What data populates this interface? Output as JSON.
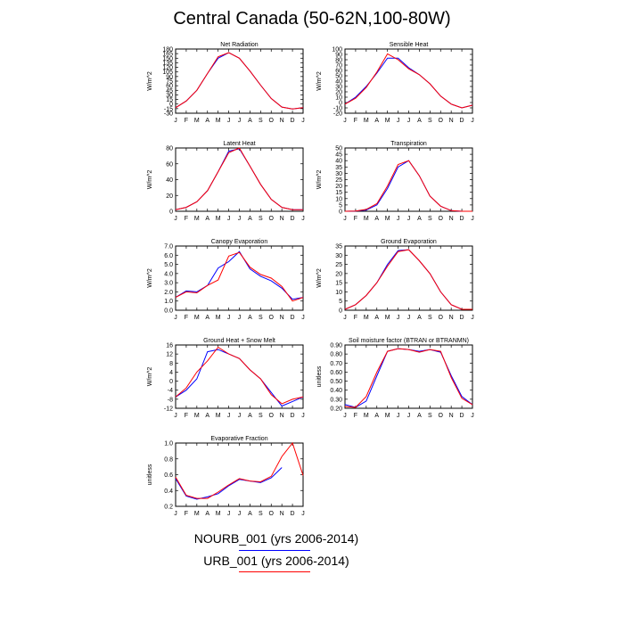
{
  "title": "Central Canada (50-62N,100-80W)",
  "legend": [
    {
      "label": "NOURB_001 (yrs 2006-2014)",
      "color": "#0000ff"
    },
    {
      "label": "URB_001 (yrs 2006-2014)",
      "color": "#ff0000"
    }
  ],
  "chart_data": [
    {
      "type": "line",
      "title": "Net Radiation",
      "ylabel": "W/m^2",
      "categories": [
        "J",
        "F",
        "M",
        "A",
        "M",
        "J",
        "J",
        "A",
        "S",
        "O",
        "N",
        "D",
        "J"
      ],
      "ylim": [
        -30,
        180
      ],
      "yticks": [
        -30,
        -15,
        0,
        15,
        30,
        45,
        60,
        75,
        90,
        105,
        120,
        135,
        150,
        165,
        180
      ],
      "series": [
        {
          "name": "NOURB_001 (yrs 2006-2014)",
          "color": "#0000ff",
          "values": [
            -12,
            10,
            45,
            100,
            150,
            168,
            150,
            108,
            62,
            18,
            -10,
            -16,
            -12
          ]
        },
        {
          "name": "URB_001 (yrs 2006-2014)",
          "color": "#ff0000",
          "values": [
            -12,
            10,
            45,
            100,
            155,
            168,
            150,
            108,
            62,
            18,
            -10,
            -16,
            -12
          ]
        }
      ]
    },
    {
      "type": "line",
      "title": "Sensible Heat",
      "ylabel": "W/m^2",
      "categories": [
        "J",
        "F",
        "M",
        "A",
        "M",
        "J",
        "J",
        "A",
        "S",
        "O",
        "N",
        "D",
        "J"
      ],
      "ylim": [
        -20,
        100
      ],
      "yticks": [
        -20,
        -10,
        0,
        10,
        20,
        30,
        40,
        50,
        60,
        70,
        80,
        90,
        100
      ],
      "series": [
        {
          "name": "NOURB_001 (yrs 2006-2014)",
          "color": "#0000ff",
          "values": [
            -3,
            10,
            30,
            55,
            83,
            83,
            65,
            52,
            35,
            12,
            -3,
            -10,
            -5
          ]
        },
        {
          "name": "URB_001 (yrs 2006-2014)",
          "color": "#ff0000",
          "values": [
            -3,
            8,
            28,
            57,
            91,
            80,
            63,
            52,
            35,
            12,
            -3,
            -10,
            -5
          ]
        }
      ]
    },
    {
      "type": "line",
      "title": "Latent Heat",
      "ylabel": "W/m^2",
      "categories": [
        "J",
        "F",
        "M",
        "A",
        "M",
        "J",
        "J",
        "A",
        "S",
        "O",
        "N",
        "D",
        "J"
      ],
      "ylim": [
        0,
        80
      ],
      "yticks": [
        0,
        20,
        40,
        60,
        80
      ],
      "series": [
        {
          "name": "NOURB_001 (yrs 2006-2014)",
          "color": "#0000ff",
          "values": [
            2,
            5,
            12,
            26,
            50,
            76,
            79,
            57,
            34,
            15,
            5,
            2,
            2
          ]
        },
        {
          "name": "URB_001 (yrs 2006-2014)",
          "color": "#ff0000",
          "values": [
            2,
            5,
            12,
            26,
            50,
            74,
            80,
            57,
            34,
            15,
            5,
            2,
            2
          ]
        }
      ]
    },
    {
      "type": "line",
      "title": "Transpiration",
      "ylabel": "W/m^2",
      "categories": [
        "J",
        "F",
        "M",
        "A",
        "M",
        "J",
        "J",
        "A",
        "S",
        "O",
        "N",
        "D",
        "J"
      ],
      "ylim": [
        0,
        50
      ],
      "yticks": [
        0,
        5,
        10,
        15,
        20,
        25,
        30,
        35,
        40,
        45,
        50
      ],
      "series": [
        {
          "name": "NOURB_001 (yrs 2006-2014)",
          "color": "#0000ff",
          "values": [
            0,
            0.2,
            1,
            5,
            18,
            35,
            40,
            28,
            12,
            4,
            0.5,
            0,
            0
          ]
        },
        {
          "name": "URB_001 (yrs 2006-2014)",
          "color": "#ff0000",
          "values": [
            0,
            0.2,
            1.5,
            6,
            20,
            37,
            40,
            28,
            12,
            4,
            0.5,
            0,
            0
          ]
        }
      ]
    },
    {
      "type": "line",
      "title": "Canopy Evaporation",
      "ylabel": "W/m^2",
      "categories": [
        "J",
        "F",
        "M",
        "A",
        "M",
        "J",
        "J",
        "A",
        "S",
        "O",
        "N",
        "D",
        "J"
      ],
      "ylim": [
        0,
        7
      ],
      "yticks": [
        0.0,
        1.0,
        2.0,
        3.0,
        4.0,
        5.0,
        6.0,
        7.0
      ],
      "series": [
        {
          "name": "NOURB_001 (yrs 2006-2014)",
          "color": "#0000ff",
          "values": [
            1.4,
            2.1,
            2.0,
            2.7,
            4.6,
            5.3,
            6.4,
            4.5,
            3.7,
            3.2,
            2.4,
            1.2,
            1.4
          ]
        },
        {
          "name": "URB_001 (yrs 2006-2014)",
          "color": "#ff0000",
          "values": [
            1.4,
            2.0,
            1.9,
            2.7,
            3.3,
            5.9,
            6.3,
            4.7,
            3.9,
            3.5,
            2.6,
            1.0,
            1.4
          ]
        }
      ]
    },
    {
      "type": "line",
      "title": "Ground Evaporation",
      "ylabel": "W/m^2",
      "categories": [
        "J",
        "F",
        "M",
        "A",
        "M",
        "J",
        "J",
        "A",
        "S",
        "O",
        "N",
        "D",
        "J"
      ],
      "ylim": [
        0,
        35
      ],
      "yticks": [
        0,
        5,
        10,
        15,
        20,
        25,
        30,
        35
      ],
      "series": [
        {
          "name": "NOURB_001 (yrs 2006-2014)",
          "color": "#0000ff",
          "values": [
            0.5,
            3,
            8,
            15,
            25,
            32.5,
            33,
            27,
            20,
            10,
            3,
            0.5,
            0.5
          ]
        },
        {
          "name": "URB_001 (yrs 2006-2014)",
          "color": "#ff0000",
          "values": [
            0.5,
            3,
            8,
            15,
            24,
            32,
            33,
            27,
            20,
            10,
            3,
            0.5,
            0.5
          ]
        }
      ]
    },
    {
      "type": "line",
      "title": "Ground Heat + Snow Melt",
      "ylabel": "W/m^2",
      "categories": [
        "J",
        "F",
        "M",
        "A",
        "M",
        "J",
        "J",
        "A",
        "S",
        "O",
        "N",
        "D",
        "J"
      ],
      "ylim": [
        -12,
        16
      ],
      "yticks": [
        -12,
        -8,
        -4,
        0,
        4,
        8,
        12,
        16
      ],
      "series": [
        {
          "name": "NOURB_001 (yrs 2006-2014)",
          "color": "#0000ff",
          "values": [
            -7,
            -4,
            1,
            13,
            14,
            12,
            10,
            5,
            1,
            -5,
            -11,
            -9,
            -7
          ]
        },
        {
          "name": "URB_001 (yrs 2006-2014)",
          "color": "#ff0000",
          "values": [
            -7,
            -3,
            4,
            9,
            15,
            12,
            10,
            5,
            1,
            -6,
            -10,
            -8,
            -7
          ]
        }
      ]
    },
    {
      "type": "line",
      "title": "Soil moisture factor (BTRAN or BTRANMN)",
      "ylabel": "unitless",
      "categories": [
        "J",
        "F",
        "M",
        "A",
        "M",
        "J",
        "J",
        "A",
        "S",
        "O",
        "N",
        "D",
        "J"
      ],
      "ylim": [
        0.2,
        0.9
      ],
      "yticks": [
        0.2,
        0.3,
        0.4,
        0.5,
        0.6,
        0.7,
        0.8,
        0.9
      ],
      "series": [
        {
          "name": "NOURB_001 (yrs 2006-2014)",
          "color": "#0000ff",
          "values": [
            0.24,
            0.21,
            0.28,
            0.56,
            0.83,
            0.86,
            0.85,
            0.83,
            0.85,
            0.82,
            0.56,
            0.33,
            0.24
          ]
        },
        {
          "name": "URB_001 (yrs 2006-2014)",
          "color": "#ff0000",
          "values": [
            0.22,
            0.21,
            0.33,
            0.6,
            0.83,
            0.86,
            0.85,
            0.82,
            0.85,
            0.83,
            0.54,
            0.31,
            0.24
          ]
        }
      ]
    },
    {
      "type": "line",
      "title": "Evaporative Fraction",
      "ylabel": "unitless",
      "categories": [
        "J",
        "F",
        "M",
        "A",
        "M",
        "J",
        "J",
        "A",
        "S",
        "O",
        "N",
        "D",
        "J"
      ],
      "ylim": [
        0.2,
        1.0
      ],
      "yticks": [
        0.2,
        0.4,
        0.6,
        0.8,
        1.0
      ],
      "series": [
        {
          "name": "NOURB_001 (yrs 2006-2014)",
          "color": "#0000ff",
          "values": [
            0.55,
            0.33,
            0.29,
            0.32,
            0.36,
            0.46,
            0.54,
            0.52,
            0.5,
            0.56,
            0.69,
            null,
            null
          ]
        },
        {
          "name": "URB_001 (yrs 2006-2014)",
          "color": "#ff0000",
          "values": [
            0.57,
            0.34,
            0.3,
            0.3,
            0.38,
            0.47,
            0.55,
            0.52,
            0.51,
            0.58,
            0.83,
            1.0,
            0.59
          ]
        }
      ]
    }
  ]
}
